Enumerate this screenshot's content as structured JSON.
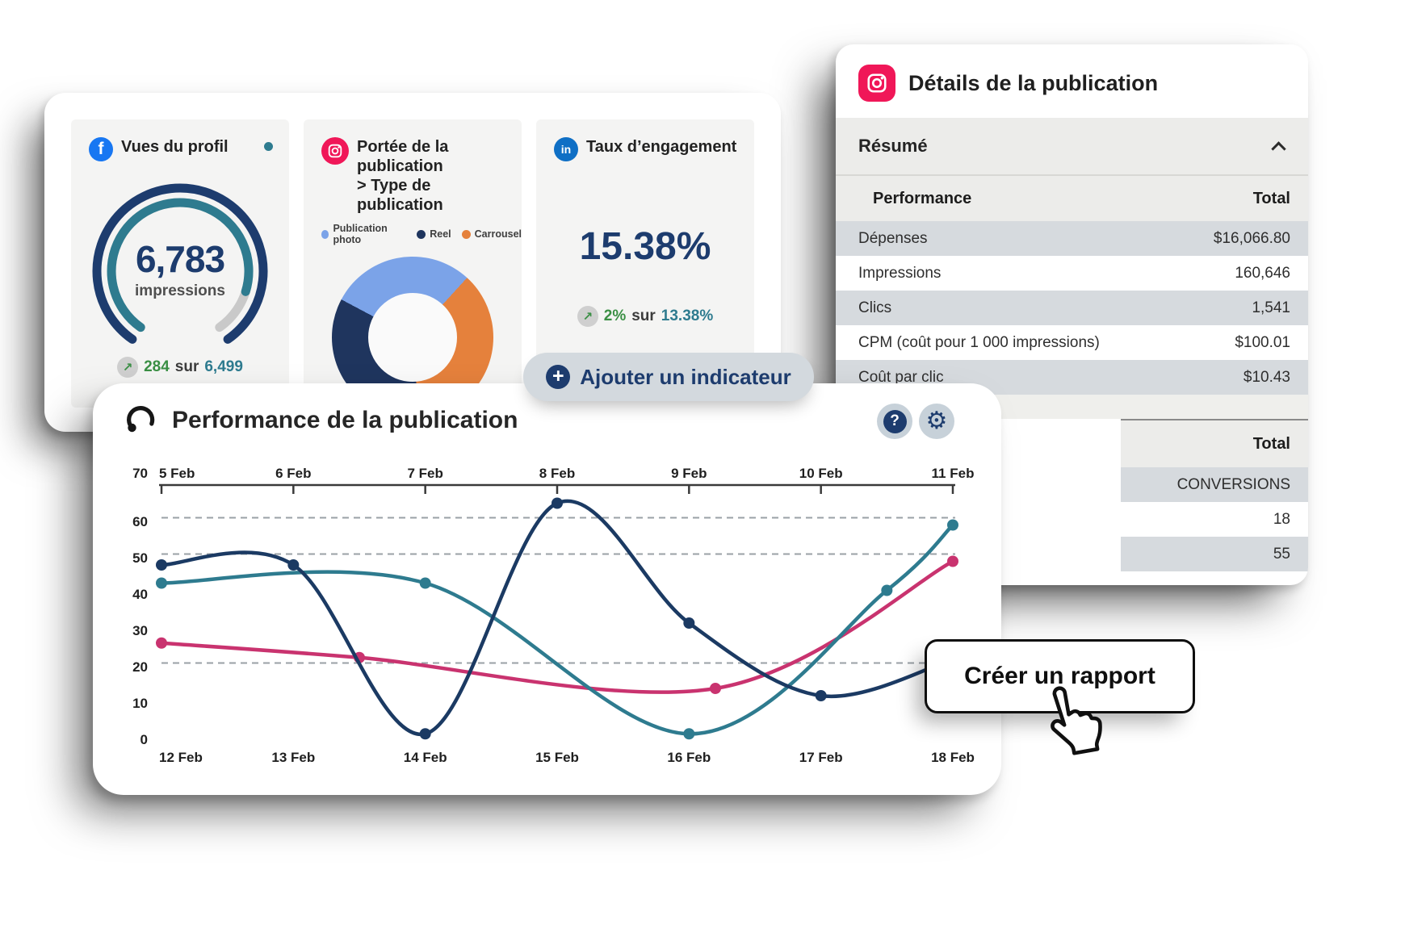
{
  "cards": {
    "dashboard": {
      "profile_tile": {
        "icon": "facebook-icon",
        "title": "Vues du profil",
        "value": "6,783",
        "unit": "impressions",
        "delta": "284",
        "sur": "sur",
        "total": "6,499"
      },
      "reach_tile": {
        "icon": "instagram-icon",
        "title_line1": "Portée de la publication",
        "title_line2": "> Type de publication"
      },
      "engagement_tile": {
        "icon": "linkedin-icon",
        "title": "Taux d’engagement",
        "value": "15.38%",
        "delta": "2%",
        "sur": "sur",
        "total": "13.38%"
      }
    },
    "details": {
      "title": "Détails de la publication",
      "summary_header": "Résumé",
      "perf_table": {
        "col_label": "Performance",
        "col_value": "Total",
        "rows": [
          {
            "label": "Dépenses",
            "value": "$16,066.80"
          },
          {
            "label": "Impressions",
            "value": "160,646"
          },
          {
            "label": "Clics",
            "value": "1,541"
          },
          {
            "label": "CPM (coût pour 1 000 impressions)",
            "value": "$100.01"
          },
          {
            "label": "Coût par clic",
            "value": "$10.43"
          }
        ]
      },
      "totals_table": {
        "header": "Total",
        "rows": [
          "CONVERSIONS",
          "18",
          "55"
        ]
      }
    },
    "buttons": {
      "add_indicator": "Ajouter un indicateur",
      "create_report": "Créer un rapport"
    }
  },
  "chart_data": [
    {
      "type": "gauge",
      "title": "Vues du profil",
      "value": 6783,
      "unit": "impressions",
      "delta": 284,
      "reference": 6499,
      "progress_pct": 87,
      "colors": {
        "outer": "#1d3c6e",
        "progress": "#2e7b8f",
        "rest": "#c9c9c9"
      }
    },
    {
      "type": "pie",
      "title": "Portée de la publication > Type de publication",
      "labels": [
        "Publication photo",
        "Reel",
        "Carrousel"
      ],
      "values": [
        29,
        34,
        37
      ],
      "colors": [
        "#7ba3e8",
        "#1f355e",
        "#e5813c"
      ],
      "gradient_order": [
        0,
        2,
        1
      ],
      "start_deg": -62,
      "legend_position": "top"
    },
    {
      "type": "line",
      "title": "Performance de la publication",
      "x_top_labels": [
        "5 Feb",
        "6 Feb",
        "7 Feb",
        "8 Feb",
        "9 Feb",
        "10 Feb",
        "11 Feb"
      ],
      "x_bottom_labels": [
        "12 Feb",
        "13 Feb",
        "14 Feb",
        "15 Feb",
        "16 Feb",
        "17 Feb",
        "18 Feb"
      ],
      "y_ticks": [
        0,
        10,
        20,
        30,
        40,
        50,
        60,
        70
      ],
      "ylim": [
        0,
        70
      ],
      "dashed_gridlines_at": [
        61,
        51,
        21
      ],
      "grid": "dashed-partial",
      "legend": "none",
      "series": [
        {
          "name": "pink",
          "color": "#c9336f",
          "points": [
            [
              0,
              26.5,
              1
            ],
            [
              1.5,
              22.5,
              1
            ],
            [
              4.2,
              14,
              1
            ],
            [
              6,
              49,
              1
            ]
          ]
        },
        {
          "name": "teal",
          "color": "#2e7b8f",
          "points": [
            [
              0,
              43,
              1
            ],
            [
              2,
              43,
              1
            ],
            [
              4,
              1.5,
              1
            ],
            [
              5.5,
              41,
              1
            ],
            [
              6,
              59,
              1
            ]
          ]
        },
        {
          "name": "navy",
          "color": "#1b3a63",
          "points": [
            [
              0,
              48,
              1
            ],
            [
              1,
              48,
              1
            ],
            [
              2,
              1.5,
              1
            ],
            [
              3,
              65,
              1
            ],
            [
              4,
              32,
              1
            ],
            [
              5,
              12,
              1
            ],
            [
              6,
              22,
              0
            ]
          ]
        }
      ]
    }
  ],
  "colors": {
    "navy_text": "#1d3c6e",
    "teal": "#2e7b8f",
    "pink": "#c9336f",
    "green_positive": "#3a8f44",
    "light_blue": "#7ba3e8",
    "orange": "#e5813c",
    "dark_navy": "#1f355e",
    "facebook": "#1877f2",
    "linkedin": "#0f6fc5",
    "instagram": "#f01758",
    "tile_bg": "#f4f4f3",
    "row_alt": "#d6dade",
    "section_bg": "#ececea",
    "pill_bg": "#d3d9de"
  }
}
